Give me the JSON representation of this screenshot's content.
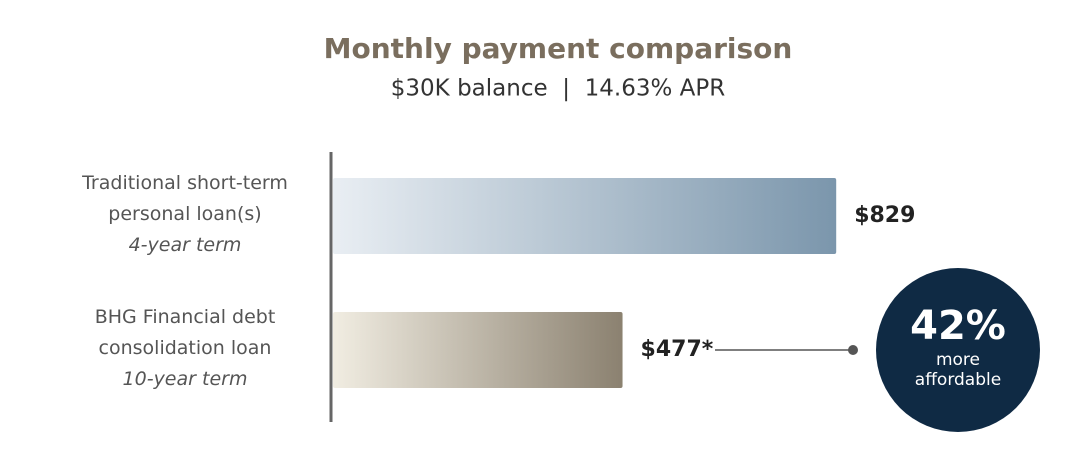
{
  "chart_data": {
    "type": "bar",
    "orientation": "horizontal",
    "title": "Monthly payment comparison",
    "subtitle": "$30K balance  |  14.63% APR",
    "categories": [
      "Traditional short-term personal loan(s)",
      "BHG Financial debt consolidation loan"
    ],
    "category_notes": [
      "4-year term",
      "10-year term"
    ],
    "values": [
      829,
      477
    ],
    "value_labels": [
      "$829",
      "$477*"
    ],
    "gradients": [
      [
        "#e9eef3",
        "#7b96ac"
      ],
      [
        "#f1ede2",
        "#8b8170"
      ]
    ],
    "xlim": [
      0,
      1000
    ],
    "annotation": {
      "value": 42,
      "label": "42%",
      "text": "more affordable",
      "color": "#0f2a44"
    }
  }
}
